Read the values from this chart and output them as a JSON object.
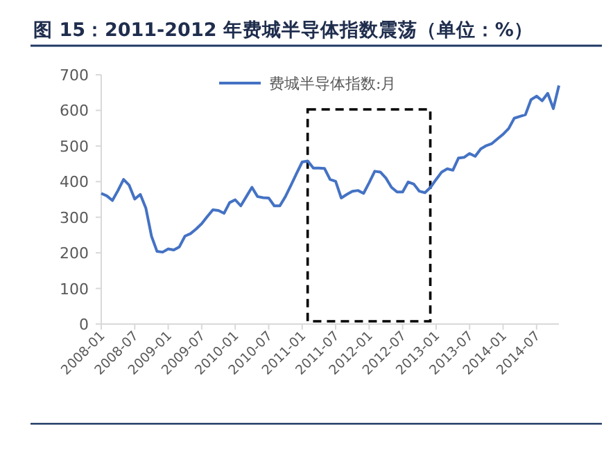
{
  "chart_data": {
    "type": "line",
    "title": "图 15：2011-2012 年费城半导体指数震荡（单位：%）",
    "x": [
      "2008-01",
      "2008-02",
      "2008-03",
      "2008-04",
      "2008-05",
      "2008-06",
      "2008-07",
      "2008-08",
      "2008-09",
      "2008-10",
      "2008-11",
      "2008-12",
      "2009-01",
      "2009-02",
      "2009-03",
      "2009-04",
      "2009-05",
      "2009-06",
      "2009-07",
      "2009-08",
      "2009-09",
      "2009-10",
      "2009-11",
      "2009-12",
      "2010-01",
      "2010-02",
      "2010-03",
      "2010-04",
      "2010-05",
      "2010-06",
      "2010-07",
      "2010-08",
      "2010-09",
      "2010-10",
      "2010-11",
      "2010-12",
      "2011-01",
      "2011-02",
      "2011-03",
      "2011-04",
      "2011-05",
      "2011-06",
      "2011-07",
      "2011-08",
      "2011-09",
      "2011-10",
      "2011-11",
      "2011-12",
      "2012-01",
      "2012-02",
      "2012-03",
      "2012-04",
      "2012-05",
      "2012-06",
      "2012-07",
      "2012-08",
      "2012-09",
      "2012-10",
      "2012-11",
      "2012-12",
      "2013-01",
      "2013-02",
      "2013-03",
      "2013-04",
      "2013-05",
      "2013-06",
      "2013-07",
      "2013-08",
      "2013-09",
      "2013-10",
      "2013-11",
      "2013-12",
      "2014-01",
      "2014-02",
      "2014-03",
      "2014-04",
      "2014-05",
      "2014-06",
      "2014-07",
      "2014-08",
      "2014-09",
      "2014-10",
      "2014-11"
    ],
    "series": [
      {
        "name": "费城半导体指数:月",
        "color": "#4472c4",
        "values": [
          367,
          360,
          347,
          375,
          406,
          390,
          351,
          364,
          325,
          247,
          204,
          202,
          211,
          208,
          217,
          247,
          254,
          267,
          282,
          302,
          321,
          319,
          311,
          341,
          349,
          332,
          358,
          384,
          358,
          355,
          354,
          332,
          332,
          358,
          390,
          423,
          455,
          458,
          438,
          438,
          437,
          406,
          401,
          354,
          364,
          373,
          375,
          367,
          397,
          429,
          427,
          410,
          384,
          371,
          371,
          399,
          393,
          373,
          369,
          384,
          406,
          427,
          436,
          432,
          466,
          468,
          479,
          471,
          492,
          501,
          507,
          520,
          533,
          549,
          578,
          583,
          588,
          630,
          640,
          627,
          648,
          605,
          670
        ]
      }
    ],
    "xlim": [
      "2008-01",
      "2014-11"
    ],
    "xticks": [
      "2008-01",
      "2008-07",
      "2009-01",
      "2009-07",
      "2010-01",
      "2010-07",
      "2011-01",
      "2011-07",
      "2012-01",
      "2012-07",
      "2013-01",
      "2013-07",
      "2014-01",
      "2014-07"
    ],
    "ylim": [
      0,
      700
    ],
    "yticks": [
      0,
      100,
      200,
      300,
      400,
      500,
      600,
      700
    ],
    "legend": "top",
    "grid": false
  }
}
